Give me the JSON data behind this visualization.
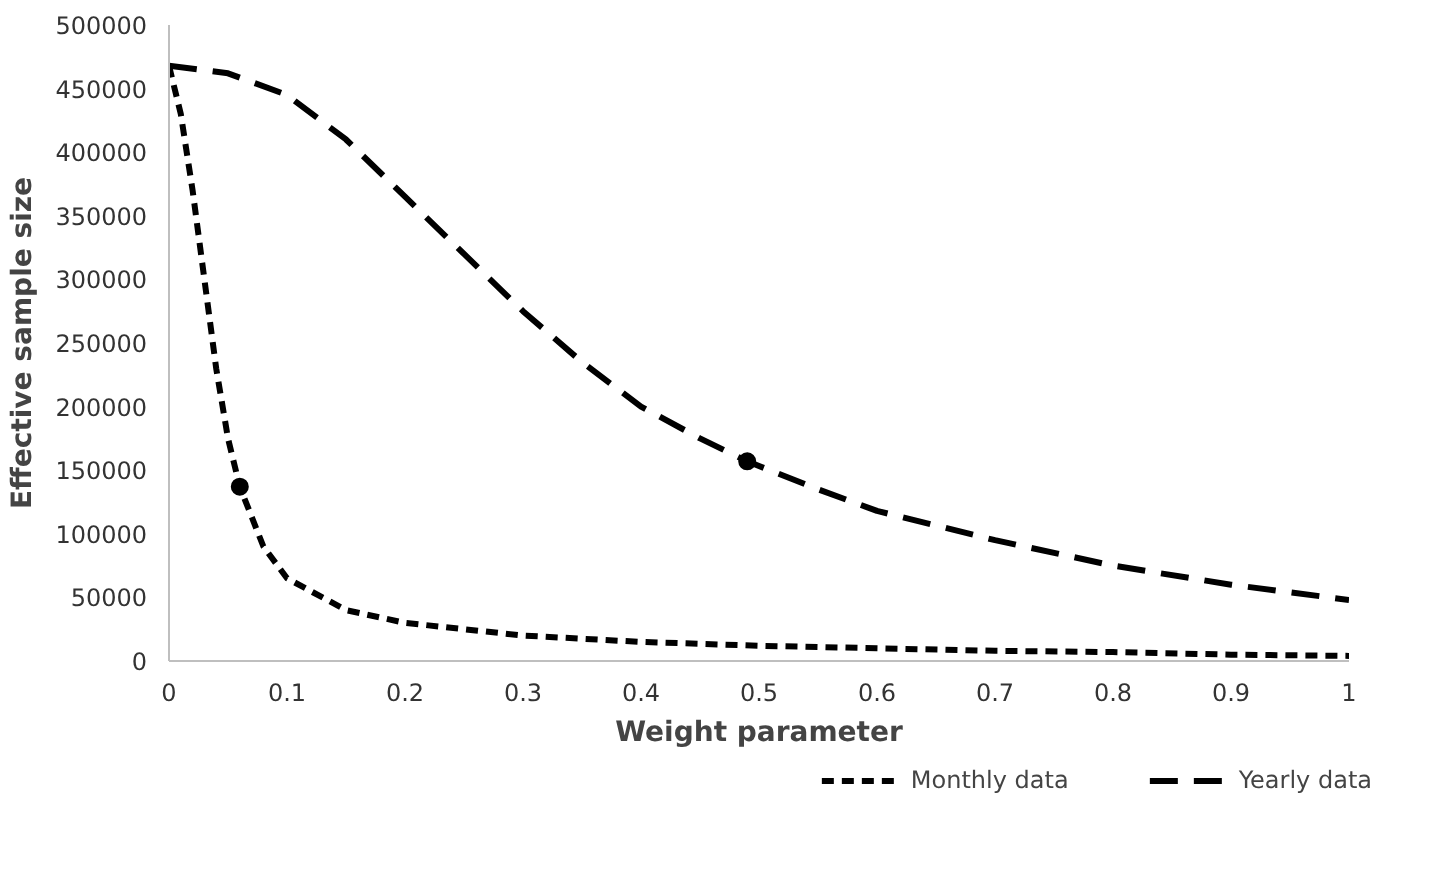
{
  "chart_data": {
    "type": "line",
    "xlabel": "Weight parameter",
    "ylabel": "Effective sample size",
    "xlim": [
      0,
      1
    ],
    "ylim": [
      0,
      500000
    ],
    "xticks": [
      0,
      0.1,
      0.2,
      0.3,
      0.4,
      0.5,
      0.6,
      0.7,
      0.8,
      0.9,
      1
    ],
    "yticks": [
      0,
      50000,
      100000,
      150000,
      200000,
      250000,
      300000,
      350000,
      400000,
      450000,
      500000
    ],
    "grid": false,
    "legend": "bottom",
    "marker": "none",
    "series": [
      {
        "name": "Monthly data",
        "color": "#000000",
        "line_style": "dotted",
        "x": [
          0,
          0.01,
          0.02,
          0.03,
          0.04,
          0.05,
          0.06,
          0.08,
          0.1,
          0.15,
          0.2,
          0.3,
          0.4,
          0.5,
          0.6,
          0.7,
          0.8,
          0.9,
          1
        ],
        "values": [
          468000,
          430000,
          370000,
          300000,
          230000,
          175000,
          137000,
          90000,
          65000,
          40000,
          30000,
          20000,
          15000,
          12000,
          10000,
          8000,
          7000,
          5000,
          4000
        ]
      },
      {
        "name": "Yearly data",
        "color": "#000000",
        "line_style": "dashed",
        "x": [
          0,
          0.05,
          0.1,
          0.15,
          0.2,
          0.25,
          0.3,
          0.35,
          0.4,
          0.45,
          0.49,
          0.55,
          0.6,
          0.7,
          0.8,
          0.9,
          1
        ],
        "values": [
          468000,
          462000,
          445000,
          410000,
          365000,
          320000,
          275000,
          235000,
          200000,
          175000,
          157000,
          135000,
          118000,
          95000,
          75000,
          60000,
          48000
        ]
      },
      {
        "type": "scatter",
        "marker": "circle",
        "color": "#000000",
        "x": [
          0.06
        ],
        "values": [
          137000
        ]
      },
      {
        "type": "scatter",
        "marker": "circle",
        "color": "#000000",
        "x": [
          0.49
        ],
        "values": [
          157000
        ]
      }
    ]
  }
}
